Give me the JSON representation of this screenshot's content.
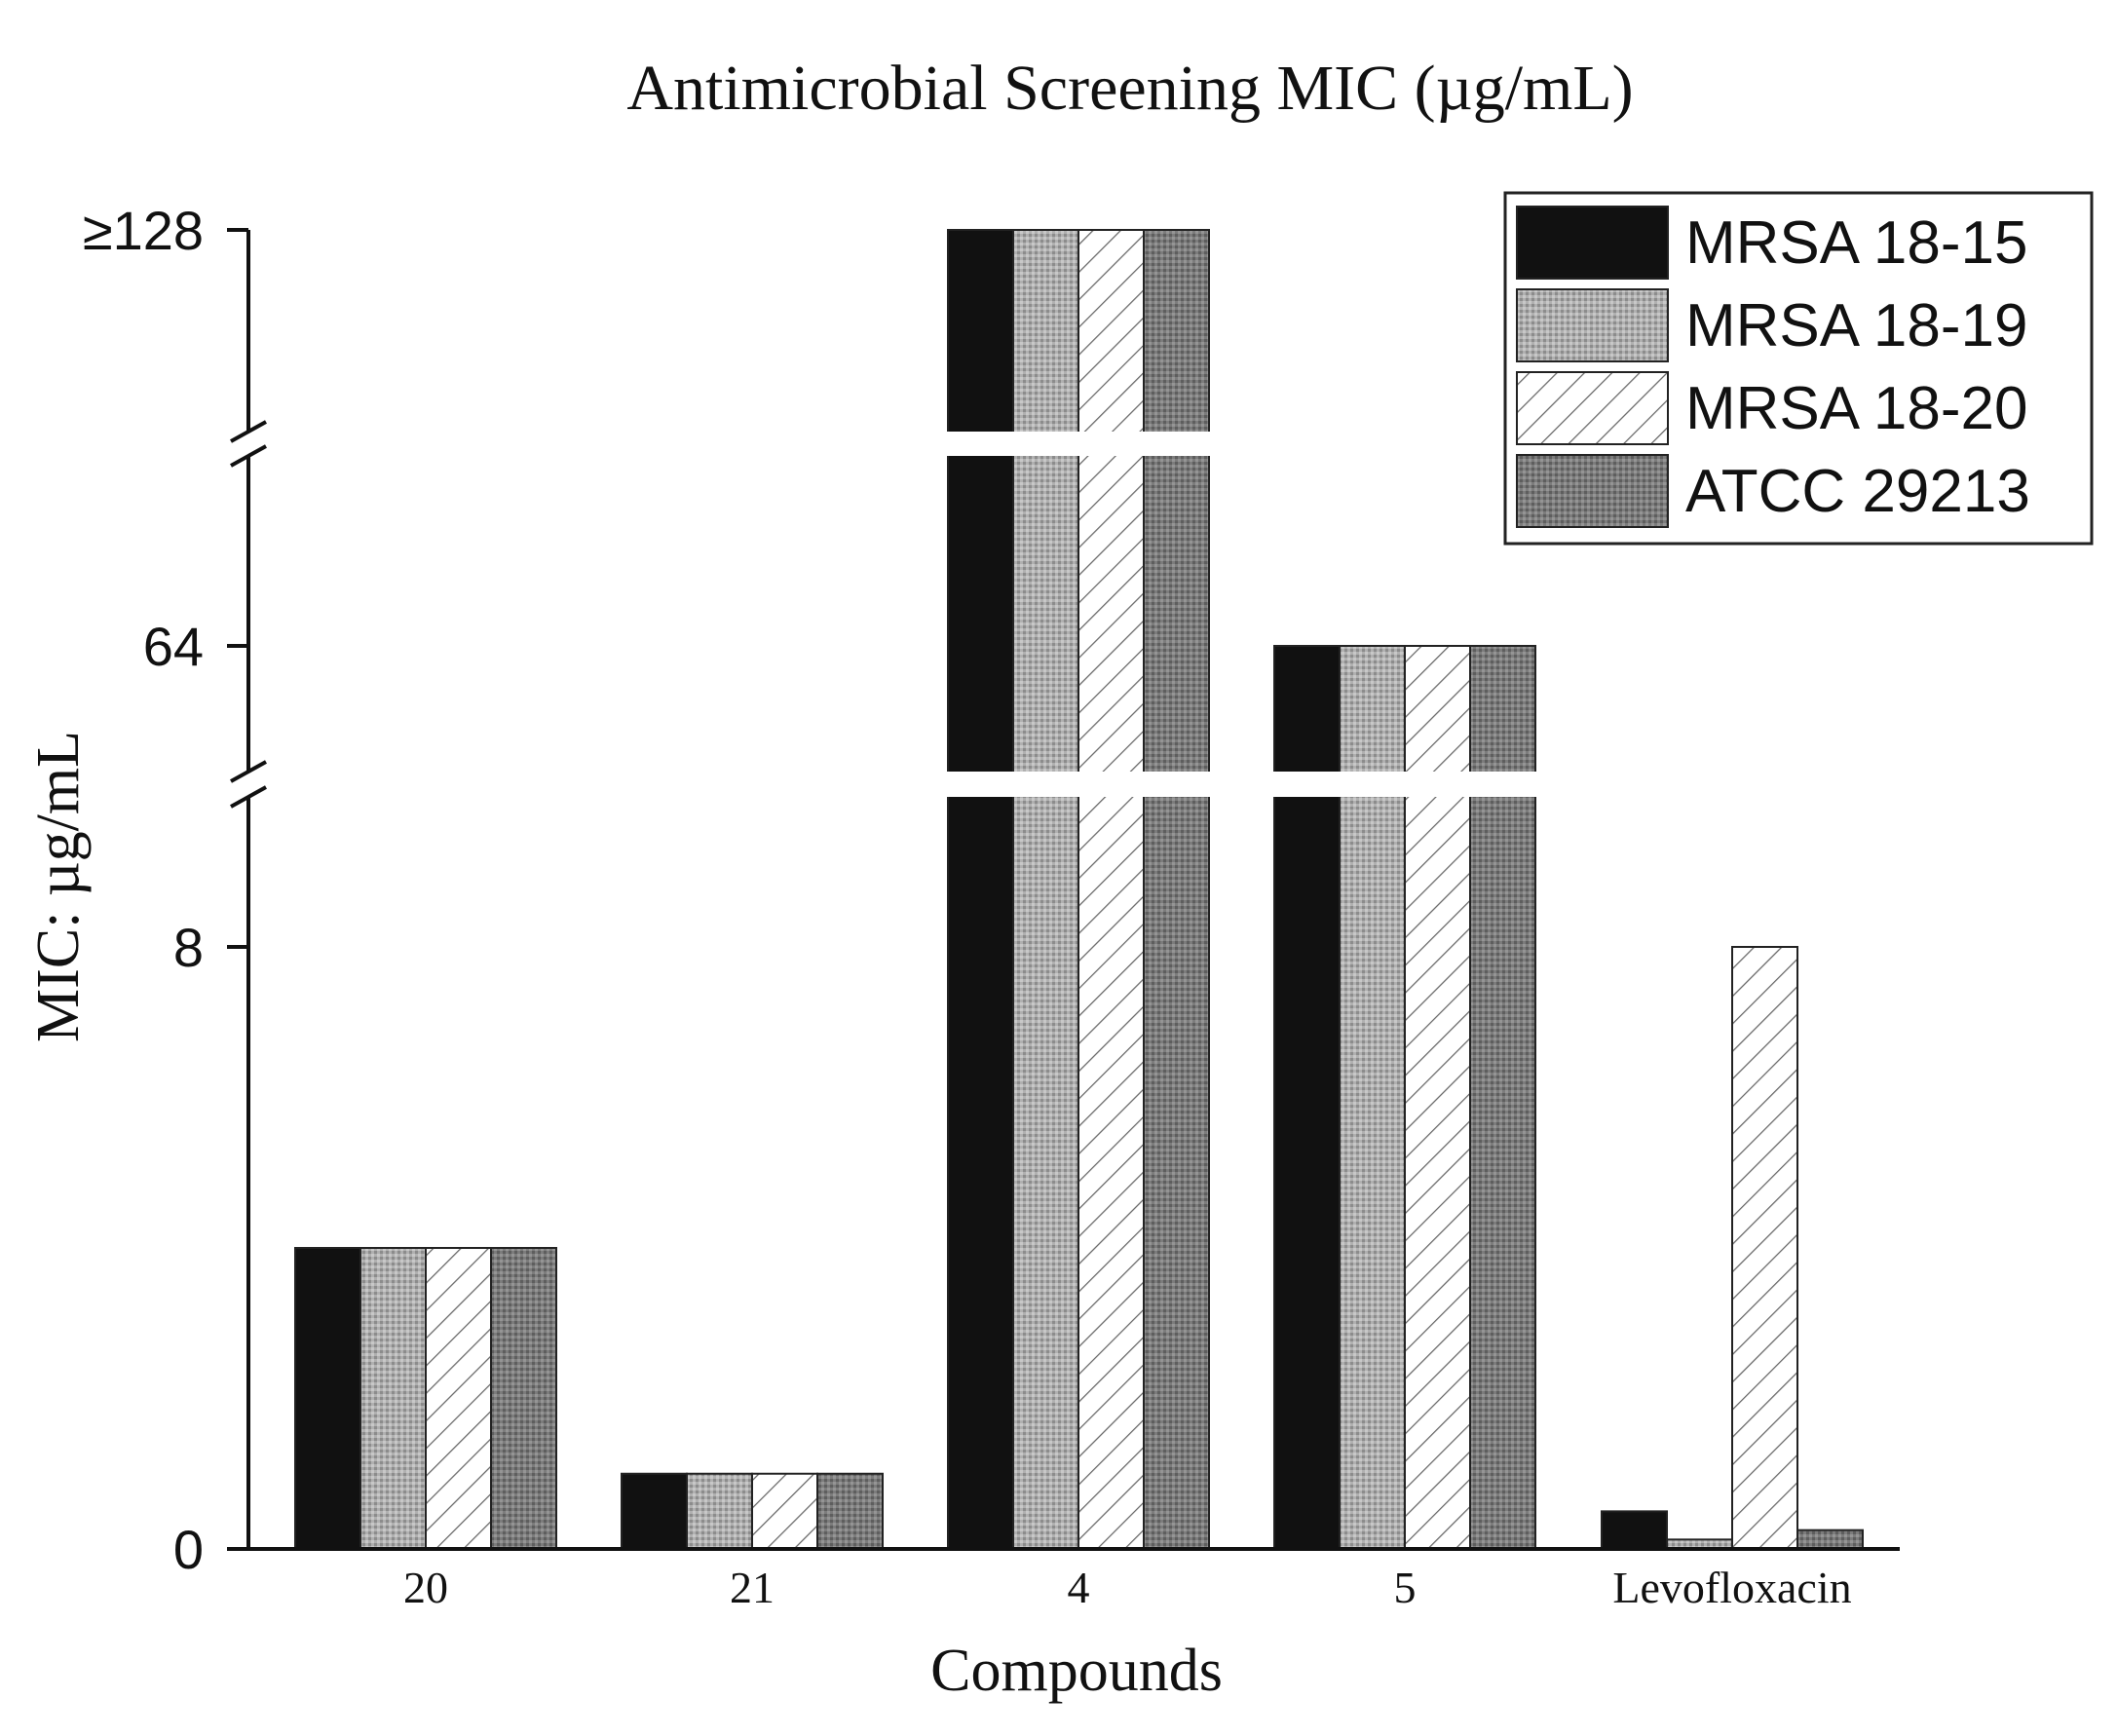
{
  "chart_data": {
    "type": "bar",
    "title": "Antimicrobial Screening MIC (µg/mL)",
    "xlabel": "Compounds",
    "ylabel": "MIC: µg/mL",
    "categories": [
      "20",
      "21",
      "4",
      "5",
      "Levofloxacin"
    ],
    "y_scale": "broken",
    "y_segments": [
      [
        0,
        8
      ],
      [
        8,
        64
      ],
      [
        64,
        128
      ]
    ],
    "y_ticks": [
      {
        "value": 0,
        "label": "0"
      },
      {
        "value": 8,
        "label": "8"
      },
      {
        "value": 64,
        "label": "64"
      },
      {
        "value": 128,
        "label": "≥128"
      }
    ],
    "axis_breaks": [
      [
        8,
        64
      ],
      [
        64,
        128
      ]
    ],
    "legend_position": "top-right",
    "series": [
      {
        "name": "MRSA 18-15",
        "pattern": "solid-black",
        "values": [
          4,
          1,
          128,
          64,
          0.5
        ]
      },
      {
        "name": "MRSA 18-19",
        "pattern": "light-gray-dots",
        "values": [
          4,
          1,
          128,
          64,
          0.125
        ]
      },
      {
        "name": "MRSA 18-20",
        "pattern": "diagonal-hatch",
        "values": [
          4,
          1,
          128,
          64,
          8
        ]
      },
      {
        "name": "ATCC 29213",
        "pattern": "dark-gray-dots",
        "values": [
          4,
          1,
          128,
          64,
          0.25
        ]
      }
    ],
    "colors": {
      "axis": "#111111",
      "solid_black": "#111111",
      "light_gray": "#a9a9a9",
      "dark_gray": "#7a7a7a",
      "hatch": "#555555"
    }
  }
}
